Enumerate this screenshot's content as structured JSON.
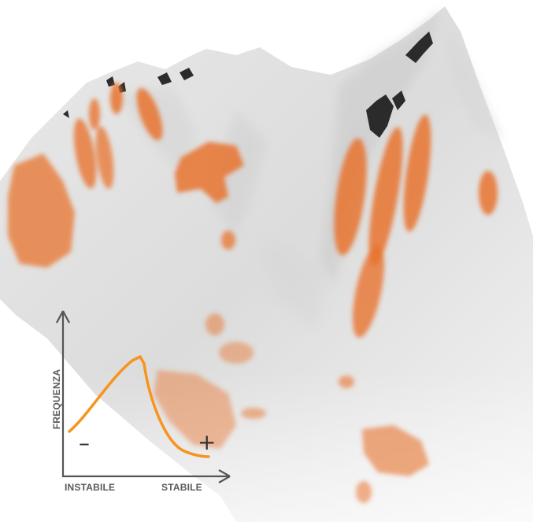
{
  "diagram": {
    "x_label_left": "INSTABILE",
    "x_label_right": "STABILE",
    "y_label": "FREQUENZA",
    "minus_sign": "–",
    "plus_sign": "+"
  },
  "colors": {
    "curve": "#F7941D",
    "patch": "#E8732E",
    "axis": "#555555"
  }
}
